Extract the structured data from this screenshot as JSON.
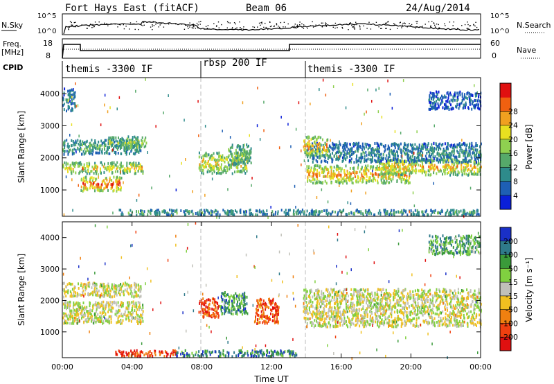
{
  "header": {
    "station_title": "Fort Hays East (fitACF)",
    "beam": "Beam 06",
    "date": "24/Aug/2014"
  },
  "status_panels": {
    "nsky_label": "N.Sky",
    "nsearch_label": "N.Search",
    "nsky_ticks": [
      "10^5",
      "10^0"
    ],
    "nsearch_ticks": [
      "10^5",
      "10^0"
    ],
    "freq_label_line1": "Freq.",
    "freq_label_line2": "[MHz]",
    "freq_ticks": [
      "18",
      "8"
    ],
    "nave_label": "Nave",
    "nave_ticks": [
      "60",
      "0"
    ],
    "cpid_label": "CPID",
    "cpid_segments": [
      {
        "label": "themis -3300 IF",
        "start_hour": 0,
        "end_hour": 8
      },
      {
        "label": "rbsp 200 IF",
        "start_hour": 8,
        "end_hour": 14
      },
      {
        "label": "themis -3300 IF",
        "start_hour": 14,
        "end_hour": 24
      }
    ]
  },
  "chart_data": [
    {
      "type": "heatmap",
      "name": "power",
      "ylabel": "Slant Range [km]",
      "x_ticks": [
        "00:00",
        "04:00",
        "08:00",
        "12:00",
        "16:00",
        "20:00",
        "00:00"
      ],
      "x_tick_hours": [
        0,
        4,
        8,
        12,
        16,
        20,
        24
      ],
      "y_ticks": [
        1000,
        2000,
        3000,
        4000
      ],
      "ylim": [
        180,
        4500
      ],
      "xlim_hours": [
        0,
        24
      ],
      "colorbar": {
        "label": "Power [dB]",
        "ticks": [
          "4",
          "8",
          "12",
          "16",
          "20",
          "24",
          "28"
        ],
        "colors": [
          "#0a1fd8",
          "#1e5fb4",
          "#2e8b8b",
          "#56a96a",
          "#8fd050",
          "#e8e020",
          "#f0a020",
          "#f06010",
          "#e01010"
        ]
      },
      "scatter_bands": [
        {
          "t0": 0.0,
          "t1": 4.6,
          "r0": 1550,
          "r1": 1900,
          "level": 0.6
        },
        {
          "t0": 1.0,
          "t1": 3.4,
          "r0": 1000,
          "r1": 1450,
          "level": 0.8
        },
        {
          "t0": 0.0,
          "t1": 4.5,
          "r0": 2150,
          "r1": 2600,
          "level": 0.35
        },
        {
          "t0": 2.6,
          "t1": 4.8,
          "r0": 2350,
          "r1": 2700,
          "level": 0.45
        },
        {
          "t0": 7.8,
          "t1": 10.6,
          "r0": 1550,
          "r1": 2200,
          "level": 0.6
        },
        {
          "t0": 9.5,
          "t1": 10.8,
          "r0": 1800,
          "r1": 2450,
          "level": 0.45
        },
        {
          "t0": 14.0,
          "t1": 20.0,
          "r0": 1250,
          "r1": 1800,
          "level": 0.7
        },
        {
          "t0": 18.0,
          "t1": 24.0,
          "r0": 1500,
          "r1": 2000,
          "level": 0.65
        },
        {
          "t0": 14.0,
          "t1": 24.0,
          "r0": 1900,
          "r1": 2500,
          "level": 0.25
        },
        {
          "t0": 13.8,
          "t1": 15.2,
          "r0": 2100,
          "r1": 2700,
          "level": 0.7
        },
        {
          "t0": 3.2,
          "t1": 24.0,
          "r0": 250,
          "r1": 420,
          "level": 0.3
        },
        {
          "t0": 21.0,
          "t1": 24.0,
          "r0": 3550,
          "r1": 4100,
          "level": 0.15
        },
        {
          "t0": 0.0,
          "t1": 0.7,
          "r0": 3500,
          "r1": 4200,
          "level": 0.2
        }
      ]
    },
    {
      "type": "heatmap",
      "name": "velocity",
      "ylabel": "Slant Range [km]",
      "x_ticks": [
        "00:00",
        "04:00",
        "08:00",
        "12:00",
        "16:00",
        "20:00",
        "00:00"
      ],
      "x_tick_hours": [
        0,
        4,
        8,
        12,
        16,
        20,
        24
      ],
      "xlabel": "Time UT",
      "y_ticks": [
        1000,
        2000,
        3000,
        4000
      ],
      "ylim": [
        180,
        4500
      ],
      "xlim_hours": [
        0,
        24
      ],
      "colorbar": {
        "label": "Velocity [m s⁻¹]",
        "ticks": [
          "200",
          "100",
          "50",
          "15",
          "-15",
          "-50",
          "-100",
          "-200"
        ],
        "colors": [
          "#1a30c8",
          "#2f7a8a",
          "#3a9a3a",
          "#80d040",
          "#c0c0b8",
          "#f0c020",
          "#f08010",
          "#f04010",
          "#e01010"
        ]
      },
      "scatter_bands": [
        {
          "t0": 0.0,
          "t1": 4.6,
          "r0": 1300,
          "r1": 2000,
          "level": 0.5
        },
        {
          "t0": 0.0,
          "t1": 4.5,
          "r0": 2150,
          "r1": 2600,
          "level": 0.5
        },
        {
          "t0": 7.8,
          "t1": 9.0,
          "r0": 1500,
          "r1": 2100,
          "level": 0.85
        },
        {
          "t0": 9.0,
          "t1": 10.6,
          "r0": 1600,
          "r1": 2300,
          "level": 0.25
        },
        {
          "t0": 11.0,
          "t1": 12.4,
          "r0": 1300,
          "r1": 2100,
          "level": 0.8
        },
        {
          "t0": 13.8,
          "t1": 24.0,
          "r0": 1200,
          "r1": 2400,
          "level": 0.5
        },
        {
          "t0": 3.0,
          "t1": 6.5,
          "r0": 250,
          "r1": 450,
          "level": 0.85
        },
        {
          "t0": 6.5,
          "t1": 13.5,
          "r0": 250,
          "r1": 450,
          "level": 0.2
        },
        {
          "t0": 21.0,
          "t1": 24.0,
          "r0": 3500,
          "r1": 4100,
          "level": 0.3
        }
      ]
    }
  ]
}
